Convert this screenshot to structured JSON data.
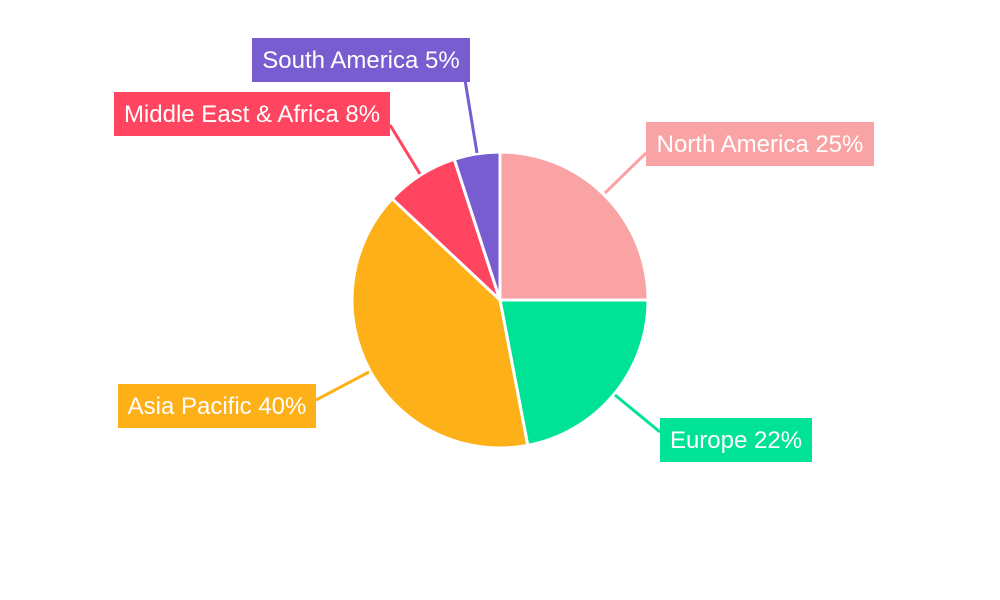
{
  "chart_data": {
    "type": "pie",
    "title": "",
    "start_angle": "top, clockwise",
    "slices": [
      {
        "label": "North America",
        "value": 25,
        "display": "North America 25%",
        "color": "#F9A3A4"
      },
      {
        "label": "Europe",
        "value": 22,
        "display": "Europe 22%",
        "color": "#00E396"
      },
      {
        "label": "Asia Pacific",
        "value": 40,
        "display": "Asia Pacific 40%",
        "color": "#FEB019"
      },
      {
        "label": "Middle East & Africa",
        "value": 8,
        "display": "Middle East & Africa 8%",
        "color": "#FF4560"
      },
      {
        "label": "South America",
        "value": 5,
        "display": "South America 5%",
        "color": "#775DD0"
      }
    ]
  }
}
